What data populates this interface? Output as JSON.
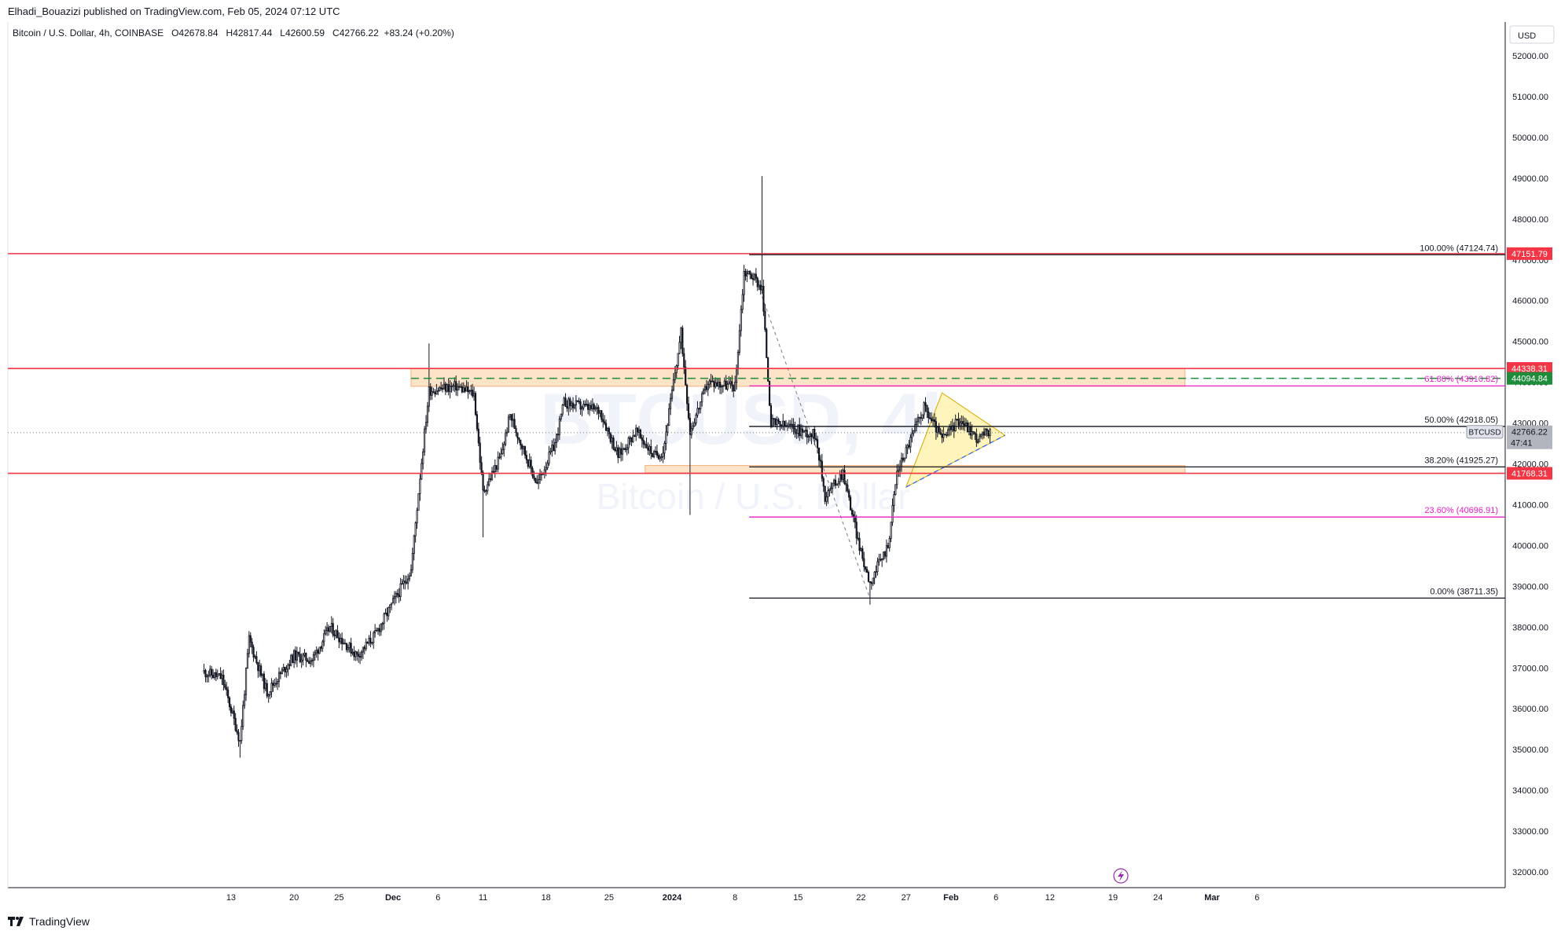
{
  "publisher": "Elhadi_Bouazizi published on TradingView.com, Feb 05, 2024 07:12 UTC",
  "legend": {
    "symbol": "Bitcoin / U.S. Dollar, 4h, COINBASE",
    "o_label": "O",
    "o": "42678.84",
    "h_label": "H",
    "h": "42817.44",
    "l_label": "L",
    "l": "42600.59",
    "c_label": "C",
    "c": "42766.22",
    "change": "+83.24 (+0.20%)"
  },
  "watermark": {
    "ticker": "BTCUSD, 4h",
    "name": "Bitcoin / U.S. Dollar"
  },
  "currency": "USD",
  "footer_brand": "TradingView",
  "colors": {
    "up": "#131722",
    "down": "#131722",
    "red_level": "#f23645",
    "green_level": "#1e8c3a",
    "fib_pink": "#e91ec7",
    "fib_black": "#131722",
    "zone_fill": "#fcd9b4",
    "triangle_fill": "#fff3b0"
  },
  "chart_data": {
    "type": "candlestick",
    "interval": "4h",
    "ylim": [
      31800,
      52600
    ],
    "y_ticks": [
      "32000.00",
      "33000.00",
      "34000.00",
      "35000.00",
      "36000.00",
      "37000.00",
      "38000.00",
      "39000.00",
      "40000.00",
      "41000.00",
      "42000.00",
      "43000.00",
      "44000.00",
      "45000.00",
      "46000.00",
      "47000.00",
      "48000.00",
      "49000.00",
      "50000.00",
      "51000.00",
      "52000.00"
    ],
    "x_ticks": [
      "13",
      "20",
      "25",
      "Dec",
      "6",
      "11",
      "18",
      "25",
      "2024",
      "8",
      "15",
      "22",
      "27",
      "Feb",
      "6",
      "12",
      "19",
      "24",
      "Mar",
      "6"
    ],
    "close_anchors": [
      {
        "x": "Nov 10",
        "close": 36900
      },
      {
        "x": "Nov 12",
        "close": 36750
      },
      {
        "x": "Nov 14",
        "close": 35200
      },
      {
        "x": "Nov 15",
        "close": 37700
      },
      {
        "x": "Nov 17",
        "close": 36400
      },
      {
        "x": "Nov 20",
        "close": 37300
      },
      {
        "x": "Nov 22",
        "close": 37200
      },
      {
        "x": "Nov 24",
        "close": 38000
      },
      {
        "x": "Nov 27",
        "close": 37300
      },
      {
        "x": "Nov 29",
        "close": 37800
      },
      {
        "x": "Dec 1",
        "close": 38600
      },
      {
        "x": "Dec 3",
        "close": 39400
      },
      {
        "x": "Dec 4",
        "close": 41700
      },
      {
        "x": "Dec 5",
        "close": 43800
      },
      {
        "x": "Dec 8",
        "close": 43900
      },
      {
        "x": "Dec 10",
        "close": 43700
      },
      {
        "x": "Dec 11",
        "close": 41300
      },
      {
        "x": "Dec 13",
        "close": 42200
      },
      {
        "x": "Dec 14",
        "close": 43200
      },
      {
        "x": "Dec 17",
        "close": 41500
      },
      {
        "x": "Dec 19",
        "close": 42500
      },
      {
        "x": "Dec 20",
        "close": 43500
      },
      {
        "x": "Dec 24",
        "close": 43300
      },
      {
        "x": "Dec 26",
        "close": 42200
      },
      {
        "x": "Dec 28",
        "close": 42800
      },
      {
        "x": "Dec 30",
        "close": 42200
      },
      {
        "x": "Dec 31",
        "close": 42300
      },
      {
        "x": "Jan 2",
        "close": 45200
      },
      {
        "x": "Jan 3",
        "close": 42800
      },
      {
        "x": "Jan 5",
        "close": 44000
      },
      {
        "x": "Jan 8",
        "close": 43900
      },
      {
        "x": "Jan 9",
        "close": 46700
      },
      {
        "x": "Jan 10",
        "close": 46600
      },
      {
        "x": "Jan 11",
        "close": 46300
      },
      {
        "x": "Jan 12",
        "close": 43000
      },
      {
        "x": "Jan 14",
        "close": 42900
      },
      {
        "x": "Jan 17",
        "close": 42700
      },
      {
        "x": "Jan 18",
        "close": 41200
      },
      {
        "x": "Jan 20",
        "close": 41800
      },
      {
        "x": "Jan 22",
        "close": 39800
      },
      {
        "x": "Jan 23",
        "close": 39100
      },
      {
        "x": "Jan 25",
        "close": 40000
      },
      {
        "x": "Jan 26",
        "close": 41800
      },
      {
        "x": "Jan 29",
        "close": 43400
      },
      {
        "x": "Jan 31",
        "close": 42600
      },
      {
        "x": "Feb 2",
        "close": 43100
      },
      {
        "x": "Feb 4",
        "close": 42600
      },
      {
        "x": "Feb 5",
        "close": 42766
      }
    ],
    "last_price": {
      "label": "BTCUSD",
      "value": "42766.22",
      "countdown": "47:41"
    },
    "horizontal_levels": [
      {
        "name": "resistance-top",
        "price": 47151.79,
        "label": "47151.79",
        "color": "#f23645"
      },
      {
        "name": "resistance-mid",
        "price": 44338.31,
        "label": "44338.31",
        "color": "#f23645"
      },
      {
        "name": "support-dashed",
        "price": 44094.84,
        "label": "44094.84",
        "color": "#1e8c3a"
      },
      {
        "name": "support",
        "price": 41768.31,
        "label": "41768.31",
        "color": "#f23645"
      }
    ],
    "zones": [
      {
        "from": "Dec 3",
        "to": "Feb 27",
        "low": 43900,
        "high": 44330
      },
      {
        "from": "Dec 29",
        "to": "Feb 27",
        "low": 41780,
        "high": 41960
      }
    ],
    "fibonacci": [
      {
        "ratio": "100.00%",
        "price": 47124.74,
        "label": "100.00% (47124.74)",
        "color": "#131722"
      },
      {
        "ratio": "61.80%",
        "price": 43910.82,
        "label": "61.80% (43910.82)",
        "color": "#e91ec7"
      },
      {
        "ratio": "50.00%",
        "price": 42918.05,
        "label": "50.00% (42918.05)",
        "color": "#131722"
      },
      {
        "ratio": "38.20%",
        "price": 41925.27,
        "label": "38.20% (41925.27)",
        "color": "#131722"
      },
      {
        "ratio": "23.60%",
        "price": 40696.91,
        "label": "23.60% (40696.91)",
        "color": "#e91ec7"
      },
      {
        "ratio": "0.00%",
        "price": 38711.35,
        "label": "0.00% (38711.35)",
        "color": "#131722"
      }
    ],
    "triangle": [
      {
        "x": "Jan 27",
        "price": 41430
      },
      {
        "x": "Jan 31",
        "price": 43740
      },
      {
        "x": "Feb 7",
        "price": 42700
      }
    ],
    "fib_anchor_line": [
      {
        "x": "Jan 11",
        "price": 46100
      },
      {
        "x": "Jan 23",
        "price": 38700
      }
    ]
  }
}
